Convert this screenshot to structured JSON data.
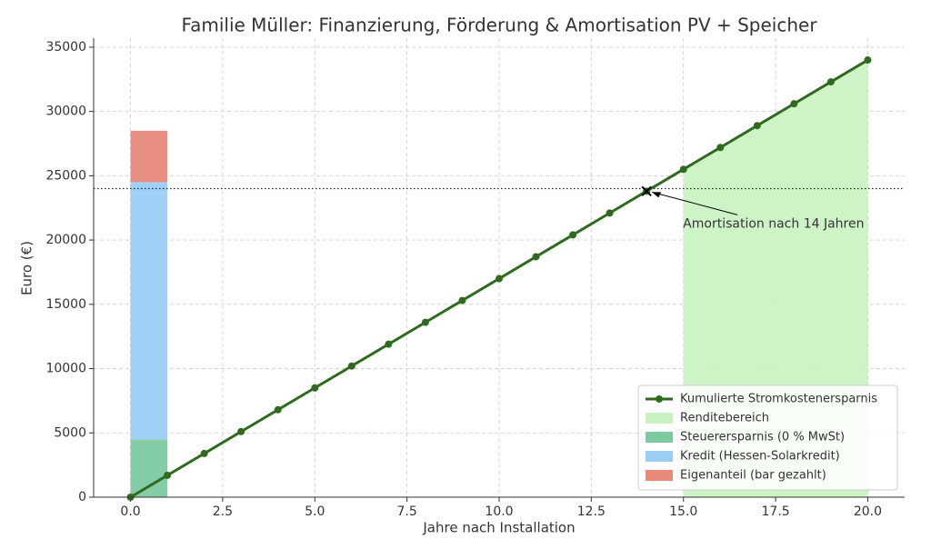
{
  "chart_data": {
    "type": "line",
    "title": "Familie Müller: Finanzierung, Förderung & Amortisation PV + Speicher",
    "x_label": "Jahre nach Installation",
    "y_label": "Euro (€)",
    "x": [
      0,
      1,
      2,
      3,
      4,
      5,
      6,
      7,
      8,
      9,
      10,
      11,
      12,
      13,
      14,
      15,
      16,
      17,
      18,
      19,
      20
    ],
    "series": [
      {
        "name": "Kumulierte Stromkostenersparnis",
        "color": "#2e6b1e",
        "values": [
          0,
          1700,
          3400,
          5100,
          6800,
          8500,
          10200,
          11900,
          13600,
          15300,
          17000,
          18700,
          20400,
          22100,
          23800,
          25500,
          27200,
          28900,
          30600,
          32300,
          34000
        ]
      }
    ],
    "area": {
      "name": "Renditebereich",
      "color": "#c9f2c1",
      "x_start": 15,
      "x_end": 20
    },
    "stacked_bar": {
      "bins": [
        0,
        1
      ],
      "series": [
        {
          "name": "Steuerersparnis (0 % MwSt)",
          "color": "#7dc9a0",
          "value": 4500
        },
        {
          "name": "Kredit (Hessen-Solarkredit)",
          "color": "#9ccdf5",
          "value": 20000
        },
        {
          "name": "Eigenanteil (bar gezahlt)",
          "color": "#e8897a",
          "value": 4000
        }
      ]
    },
    "hline": 24000,
    "annotation": {
      "text": "Amortisation nach 14 Jahren",
      "x": 14,
      "y": 23800
    },
    "xlim": [
      -1,
      21
    ],
    "ylim": [
      0,
      35700
    ],
    "xticks": [
      {
        "value": 0,
        "label": "0.0"
      },
      2.5,
      {
        "value": 5,
        "label": "5.0"
      },
      7.5,
      {
        "value": 10,
        "label": "10.0"
      },
      12.5,
      {
        "value": 15,
        "label": "15.0"
      },
      17.5,
      {
        "value": 20,
        "label": "20.0"
      }
    ],
    "yticks": [
      0,
      5000,
      10000,
      15000,
      20000,
      25000,
      30000,
      35000
    ],
    "grid": true,
    "legend": "lower right"
  }
}
